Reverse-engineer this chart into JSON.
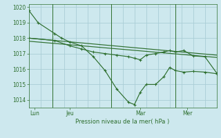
{
  "background_color": "#cde8ee",
  "grid_color": "#aacdd6",
  "line_color": "#2d6e2d",
  "title": "Pression niveau de la mer( hPa )",
  "ylim": [
    1013.5,
    1020.2
  ],
  "yticks": [
    1014,
    1015,
    1016,
    1017,
    1018,
    1019,
    1020
  ],
  "xlim": [
    0,
    16
  ],
  "day_labels": [
    "Lun",
    "Jeu",
    "Mar",
    "Mer"
  ],
  "day_positions": [
    0.5,
    3.5,
    9.5,
    13.5
  ],
  "vline_positions": [
    2.0,
    7.0,
    12.5
  ],
  "series1_x": [
    0.0,
    0.8,
    2.2,
    2.8,
    3.5,
    4.5,
    5.5,
    6.5,
    7.5,
    8.5,
    9.0,
    9.5,
    10.0,
    10.8,
    11.5,
    12.0,
    12.5,
    13.2,
    14.0,
    15.0,
    16.0
  ],
  "series1_y": [
    1019.8,
    1019.0,
    1018.3,
    1018.0,
    1017.75,
    1017.5,
    1016.8,
    1015.9,
    1014.7,
    1013.85,
    1013.7,
    1014.5,
    1015.0,
    1015.0,
    1015.5,
    1016.1,
    1015.9,
    1015.8,
    1015.85,
    1015.8,
    1015.7
  ],
  "series2_x": [
    0.0,
    2.2,
    3.5,
    4.5,
    5.5,
    6.5,
    7.5,
    8.5,
    9.0,
    9.5,
    10.0,
    10.8,
    11.5,
    12.0,
    12.5,
    13.2,
    14.0,
    15.0,
    16.0
  ],
  "series2_y": [
    1018.0,
    1017.85,
    1017.5,
    1017.3,
    1017.1,
    1017.0,
    1016.9,
    1016.8,
    1016.7,
    1016.6,
    1016.9,
    1017.0,
    1017.1,
    1017.2,
    1017.1,
    1017.2,
    1016.85,
    1016.8,
    1015.75
  ],
  "series3_x": [
    0.0,
    16.0
  ],
  "series3_y": [
    1018.0,
    1016.9
  ],
  "series4_x": [
    0.0,
    16.0
  ],
  "series4_y": [
    1017.8,
    1016.75
  ]
}
